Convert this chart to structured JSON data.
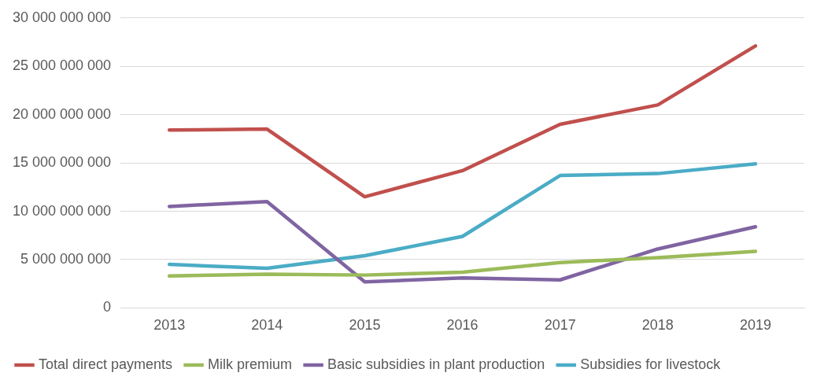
{
  "chart_data": {
    "type": "line",
    "categories": [
      "2013",
      "2014",
      "2015",
      "2016",
      "2017",
      "2018",
      "2019"
    ],
    "series": [
      {
        "name": "Total direct payments",
        "color": "#c0504d",
        "values": [
          18400000000,
          18500000000,
          11500000000,
          14200000000,
          19000000000,
          21000000000,
          27100000000
        ]
      },
      {
        "name": "Milk premium",
        "color": "#9bbb59",
        "values": [
          3300000000,
          3500000000,
          3400000000,
          3700000000,
          4700000000,
          5200000000,
          5850000000
        ]
      },
      {
        "name": "Basic subsidies in plant production",
        "color": "#8064a2",
        "values": [
          10500000000,
          11000000000,
          2700000000,
          3100000000,
          2900000000,
          6100000000,
          8400000000
        ]
      },
      {
        "name": "Subsidies for livestock",
        "color": "#4bacc6",
        "values": [
          4500000000,
          4100000000,
          5400000000,
          7400000000,
          13700000000,
          13900000000,
          14900000000
        ]
      }
    ],
    "ylim": [
      0,
      30000000000
    ],
    "yticks": [
      0,
      5000000000,
      10000000000,
      15000000000,
      20000000000,
      25000000000,
      30000000000
    ],
    "grid": "y",
    "legend": "bottom",
    "marker": "none",
    "line_style": "solid"
  }
}
